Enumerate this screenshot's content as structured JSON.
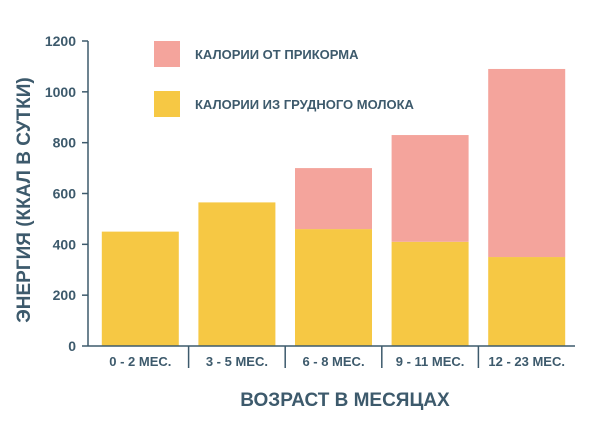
{
  "chart_data": {
    "type": "bar",
    "stacked": true,
    "categories": [
      "0 - 2 МЕС.",
      "3 - 5 МЕС.",
      "6 - 8 МЕС.",
      "9 - 11 МЕС.",
      "12 - 23 МЕС."
    ],
    "series": [
      {
        "name": "КАЛОРИИ ИЗ ГРУДНОГО МОЛОКА",
        "values": [
          450,
          565,
          460,
          410,
          350
        ],
        "color": "#f6c844"
      },
      {
        "name": "КАЛОРИИ ОТ ПРИКОРМА",
        "values": [
          0,
          0,
          240,
          420,
          740
        ],
        "color": "#f4a49c"
      }
    ],
    "xlabel": "ВОЗРАСТ В МЕСЯЦАХ",
    "ylabel": "ЭНЕРГИЯ (ККАЛ В СУТКИ)",
    "ylim": [
      0,
      1200
    ],
    "yticks": [
      0,
      200,
      400,
      600,
      800,
      1000,
      1200
    ],
    "grid": false,
    "legend": "top-left",
    "axis_color": "#3d5a6c"
  }
}
